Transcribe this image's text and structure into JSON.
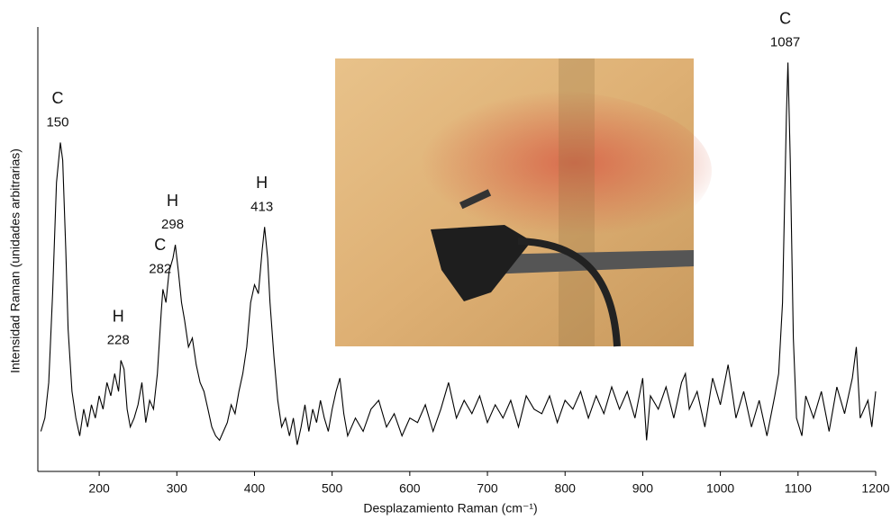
{
  "chart_data": {
    "type": "line",
    "xlabel": "Desplazamiento Raman (cm⁻¹)",
    "ylabel": "Intensidad Raman (unidades arbitrarias)",
    "xlim": [
      121,
      1200
    ],
    "ylim": [
      0,
      100
    ],
    "xticks": [
      200,
      300,
      400,
      500,
      600,
      700,
      800,
      900,
      1000,
      1100,
      1200
    ],
    "x": [
      125,
      130,
      135,
      140,
      145,
      150,
      153,
      157,
      160,
      165,
      170,
      175,
      180,
      185,
      190,
      195,
      200,
      205,
      210,
      215,
      220,
      225,
      228,
      232,
      236,
      240,
      245,
      250,
      255,
      260,
      265,
      270,
      275,
      280,
      282,
      286,
      290,
      295,
      298,
      302,
      306,
      310,
      315,
      320,
      325,
      330,
      335,
      340,
      345,
      350,
      355,
      360,
      365,
      370,
      375,
      380,
      385,
      390,
      395,
      400,
      405,
      410,
      413,
      417,
      420,
      425,
      430,
      435,
      440,
      445,
      450,
      455,
      460,
      465,
      470,
      475,
      480,
      485,
      490,
      495,
      500,
      505,
      510,
      515,
      520,
      530,
      540,
      550,
      560,
      570,
      580,
      590,
      600,
      610,
      620,
      630,
      640,
      650,
      660,
      670,
      680,
      690,
      700,
      710,
      720,
      730,
      740,
      750,
      760,
      770,
      780,
      790,
      800,
      810,
      820,
      830,
      840,
      850,
      860,
      870,
      880,
      890,
      900,
      905,
      910,
      920,
      930,
      940,
      950,
      955,
      960,
      970,
      980,
      990,
      1000,
      1010,
      1020,
      1030,
      1040,
      1050,
      1060,
      1070,
      1075,
      1080,
      1085,
      1087,
      1090,
      1094,
      1098,
      1105,
      1110,
      1120,
      1130,
      1140,
      1150,
      1160,
      1170,
      1175,
      1180,
      1190,
      1195,
      1200
    ],
    "series": [
      {
        "color": "#000000",
        "values": [
          9,
          12,
          20,
          40,
          65,
          74,
          70,
          50,
          32,
          18,
          12,
          8,
          14,
          10,
          15,
          12,
          17,
          14,
          20,
          17,
          22,
          18,
          25,
          23,
          14,
          10,
          12,
          15,
          20,
          11,
          16,
          14,
          22,
          36,
          41,
          38,
          45,
          48,
          51,
          45,
          38,
          34,
          28,
          30,
          24,
          20,
          18,
          14,
          10,
          8,
          7,
          9,
          11,
          15,
          13,
          18,
          22,
          28,
          38,
          42,
          40,
          50,
          55,
          48,
          38,
          26,
          16,
          10,
          12,
          8,
          12,
          6,
          10,
          15,
          9,
          14,
          11,
          16,
          12,
          9,
          14,
          18,
          21,
          13,
          8,
          12,
          9,
          14,
          16,
          10,
          13,
          8,
          12,
          11,
          15,
          9,
          14,
          20,
          12,
          16,
          13,
          17,
          11,
          15,
          12,
          16,
          10,
          17,
          14,
          13,
          17,
          11,
          16,
          14,
          18,
          12,
          17,
          13,
          19,
          14,
          18,
          12,
          21,
          7,
          17,
          14,
          19,
          12,
          20,
          22,
          14,
          18,
          10,
          21,
          15,
          24,
          12,
          18,
          10,
          16,
          8,
          17,
          22,
          38,
          80,
          92,
          70,
          30,
          12,
          8,
          17,
          12,
          18,
          9,
          19,
          13,
          21,
          28,
          12,
          16,
          10,
          18
        ]
      }
    ],
    "annotations": [
      {
        "label": "C",
        "x": 150
      },
      {
        "label": "H",
        "x": 228
      },
      {
        "label": "C",
        "x": 282
      },
      {
        "label": "H",
        "x": 298
      },
      {
        "label": "H",
        "x": 413
      },
      {
        "label": "C",
        "x": 1087
      }
    ]
  }
}
